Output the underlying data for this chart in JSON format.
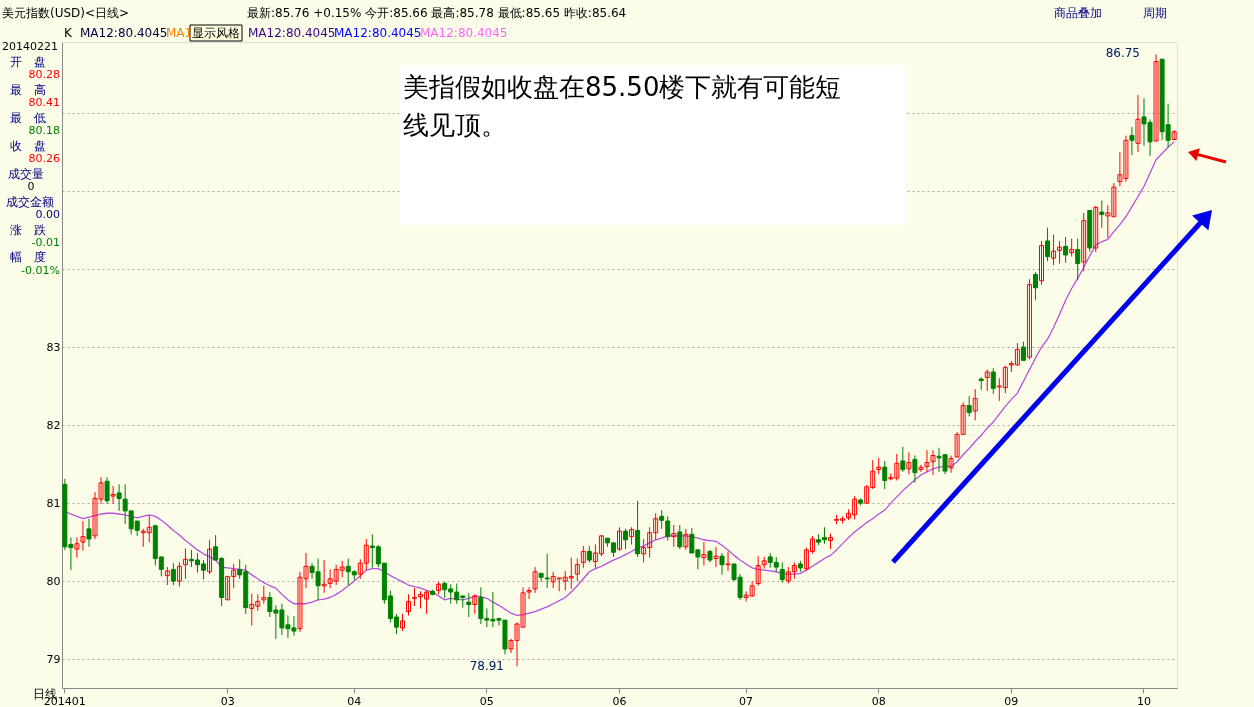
{
  "chart_data": {
    "type": "candlestick",
    "title": "美元指数(USD)<日线>",
    "categories": [
      "201401",
      null,
      null,
      null,
      null,
      null,
      null,
      null,
      null,
      null,
      null,
      null,
      null,
      null,
      null,
      null,
      null,
      null,
      null,
      null,
      null,
      null,
      null,
      null,
      null,
      null,
      null,
      "03",
      null,
      null,
      null,
      null,
      null,
      null,
      null,
      null,
      null,
      null,
      null,
      null,
      null,
      null,
      null,
      null,
      null,
      null,
      null,
      null,
      "04",
      null,
      null,
      null,
      null,
      null,
      null,
      null,
      null,
      null,
      null,
      null,
      null,
      null,
      null,
      null,
      null,
      null,
      null,
      null,
      null,
      null,
      "05",
      null,
      null,
      null,
      null,
      null,
      null,
      null,
      null,
      null,
      null,
      null,
      null,
      null,
      null,
      null,
      null,
      null,
      null,
      null,
      null,
      null,
      "06",
      null,
      null,
      null,
      null,
      null,
      null,
      null,
      null,
      null,
      null,
      null,
      null,
      null,
      null,
      null,
      null,
      null,
      null,
      null,
      null,
      "07",
      null,
      null,
      null,
      null,
      null,
      null,
      null,
      null,
      null,
      null,
      null,
      null,
      null,
      null,
      null,
      null,
      null,
      null,
      null,
      null,
      null,
      "08",
      null,
      null,
      null,
      null,
      null,
      null,
      null,
      null,
      null,
      null,
      null,
      null,
      null,
      null,
      null,
      null,
      null,
      null,
      null,
      null,
      null,
      "09",
      null,
      null,
      null,
      null,
      null,
      null,
      null,
      null,
      null,
      null,
      null,
      null,
      null,
      null,
      null,
      null,
      null,
      null,
      null,
      null,
      null,
      "10",
      null,
      null,
      null,
      null,
      null
    ],
    "ohlc": [
      [
        81.24,
        81.31,
        80.4,
        80.44
      ],
      [
        80.47,
        80.56,
        80.14,
        80.43
      ],
      [
        80.41,
        80.56,
        80.3,
        80.48
      ],
      [
        80.5,
        80.77,
        80.39,
        80.57
      ],
      [
        80.67,
        80.8,
        80.44,
        80.54
      ],
      [
        80.58,
        81.14,
        80.54,
        81.06
      ],
      [
        81.05,
        81.33,
        80.99,
        81.26
      ],
      [
        81.28,
        81.33,
        80.99,
        81.03
      ],
      [
        81.09,
        81.22,
        80.99,
        81.11
      ],
      [
        81.13,
        81.24,
        80.9,
        81.06
      ],
      [
        81.05,
        81.24,
        80.73,
        80.9
      ],
      [
        80.9,
        80.9,
        80.6,
        80.67
      ],
      [
        80.77,
        80.77,
        80.58,
        80.65
      ],
      [
        80.62,
        80.67,
        80.44,
        80.64
      ],
      [
        80.62,
        80.84,
        80.5,
        80.69
      ],
      [
        80.71,
        80.72,
        80.2,
        80.29
      ],
      [
        80.31,
        80.31,
        80.06,
        80.15
      ],
      [
        80.07,
        80.18,
        79.95,
        80.13
      ],
      [
        80.15,
        80.23,
        79.95,
        80.0
      ],
      [
        80.0,
        80.24,
        79.93,
        80.19
      ],
      [
        80.21,
        80.42,
        80.03,
        80.28
      ],
      [
        80.28,
        80.4,
        80.18,
        80.26
      ],
      [
        80.27,
        80.36,
        80.11,
        80.21
      ],
      [
        80.22,
        80.27,
        80.02,
        80.14
      ],
      [
        80.12,
        80.53,
        80.09,
        80.41
      ],
      [
        80.44,
        80.59,
        80.27,
        80.27
      ],
      [
        80.29,
        80.31,
        79.68,
        79.79
      ],
      [
        79.76,
        80.06,
        79.76,
        80.06
      ],
      [
        80.06,
        80.22,
        79.91,
        80.14
      ],
      [
        80.15,
        80.28,
        80.03,
        80.08
      ],
      [
        80.12,
        80.21,
        79.58,
        79.66
      ],
      [
        79.65,
        79.84,
        79.43,
        79.7
      ],
      [
        79.68,
        79.83,
        79.62,
        79.74
      ],
      [
        79.76,
        79.94,
        79.71,
        79.79
      ],
      [
        79.79,
        79.86,
        79.54,
        79.61
      ],
      [
        79.63,
        79.69,
        79.26,
        79.59
      ],
      [
        79.63,
        79.71,
        79.31,
        79.4
      ],
      [
        79.44,
        79.56,
        79.27,
        79.39
      ],
      [
        79.4,
        79.55,
        79.3,
        79.36
      ],
      [
        79.39,
        80.12,
        79.35,
        80.05
      ],
      [
        80.03,
        80.36,
        79.91,
        80.19
      ],
      [
        80.19,
        80.23,
        80.03,
        80.11
      ],
      [
        80.12,
        80.29,
        79.76,
        79.94
      ],
      [
        79.94,
        80.27,
        79.85,
        79.96
      ],
      [
        79.97,
        80.15,
        79.91,
        80.03
      ],
      [
        80.0,
        80.21,
        79.95,
        80.15
      ],
      [
        80.14,
        80.26,
        80.05,
        80.18
      ],
      [
        80.19,
        80.29,
        79.95,
        80.12
      ],
      [
        80.12,
        80.14,
        80.01,
        80.08
      ],
      [
        80.09,
        80.28,
        80.03,
        80.23
      ],
      [
        80.23,
        80.54,
        80.14,
        80.46
      ],
      [
        80.45,
        80.6,
        80.17,
        80.43
      ],
      [
        80.44,
        80.46,
        80.18,
        80.22
      ],
      [
        80.23,
        80.23,
        79.71,
        79.76
      ],
      [
        79.81,
        79.88,
        79.47,
        79.52
      ],
      [
        79.54,
        79.58,
        79.32,
        79.41
      ],
      [
        79.4,
        79.58,
        79.36,
        79.49
      ],
      [
        79.61,
        79.83,
        79.56,
        79.74
      ],
      [
        79.78,
        79.91,
        79.68,
        79.79
      ],
      [
        79.8,
        79.87,
        79.65,
        79.83
      ],
      [
        79.77,
        79.88,
        79.58,
        79.86
      ],
      [
        79.87,
        79.89,
        79.82,
        79.83
      ],
      [
        79.88,
        79.99,
        79.83,
        79.96
      ],
      [
        79.97,
        79.99,
        79.78,
        79.89
      ],
      [
        79.9,
        79.96,
        79.71,
        79.86
      ],
      [
        79.86,
        79.97,
        79.71,
        79.76
      ],
      [
        79.81,
        79.81,
        79.66,
        79.79
      ],
      [
        79.73,
        79.85,
        79.54,
        79.7
      ],
      [
        79.7,
        79.83,
        79.58,
        79.81
      ],
      [
        79.79,
        79.92,
        79.45,
        79.52
      ],
      [
        79.52,
        79.65,
        79.41,
        79.5
      ],
      [
        79.51,
        79.86,
        79.41,
        79.49
      ],
      [
        79.52,
        79.53,
        79.43,
        79.5
      ],
      [
        79.5,
        79.5,
        79.06,
        79.13
      ],
      [
        79.13,
        79.26,
        79.08,
        79.24
      ],
      [
        79.24,
        79.47,
        78.91,
        79.45
      ],
      [
        79.41,
        79.92,
        79.41,
        79.85
      ],
      [
        79.86,
        79.92,
        79.77,
        79.88
      ],
      [
        79.9,
        80.18,
        79.85,
        80.12
      ],
      [
        80.1,
        80.1,
        79.99,
        80.05
      ],
      [
        80.04,
        80.35,
        79.91,
        80.03
      ],
      [
        79.99,
        80.12,
        79.91,
        80.06
      ],
      [
        80.03,
        80.04,
        79.87,
        80.04
      ],
      [
        80.0,
        80.13,
        79.88,
        80.05
      ],
      [
        80.04,
        80.3,
        79.9,
        80.06
      ],
      [
        80.09,
        80.29,
        80.0,
        80.21
      ],
      [
        80.24,
        80.45,
        80.17,
        80.38
      ],
      [
        80.38,
        80.45,
        80.24,
        80.27
      ],
      [
        80.25,
        80.47,
        80.17,
        80.36
      ],
      [
        80.35,
        80.59,
        80.32,
        80.58
      ],
      [
        80.55,
        80.55,
        80.44,
        80.49
      ],
      [
        80.49,
        80.5,
        80.31,
        80.37
      ],
      [
        80.41,
        80.69,
        80.39,
        80.64
      ],
      [
        80.64,
        80.67,
        80.41,
        80.53
      ],
      [
        80.57,
        80.69,
        80.47,
        80.66
      ],
      [
        80.65,
        81.03,
        80.31,
        80.35
      ],
      [
        80.35,
        80.54,
        80.24,
        80.43
      ],
      [
        80.43,
        80.69,
        80.3,
        80.62
      ],
      [
        80.62,
        80.87,
        80.53,
        80.8
      ],
      [
        80.83,
        80.91,
        80.67,
        80.78
      ],
      [
        80.77,
        80.83,
        80.52,
        80.57
      ],
      [
        80.57,
        80.72,
        80.44,
        80.61
      ],
      [
        80.63,
        80.72,
        80.41,
        80.44
      ],
      [
        80.44,
        80.67,
        80.4,
        80.6
      ],
      [
        80.6,
        80.68,
        80.36,
        80.36
      ],
      [
        80.4,
        80.41,
        80.15,
        80.31
      ],
      [
        80.3,
        80.5,
        80.2,
        80.34
      ],
      [
        80.38,
        80.4,
        80.24,
        80.27
      ],
      [
        80.29,
        80.44,
        80.18,
        80.32
      ],
      [
        80.32,
        80.36,
        80.08,
        80.21
      ],
      [
        80.21,
        80.38,
        80.13,
        80.22
      ],
      [
        80.22,
        80.22,
        80.0,
        80.02
      ],
      [
        80.05,
        80.09,
        79.76,
        79.79
      ],
      [
        79.79,
        79.87,
        79.74,
        79.82
      ],
      [
        79.81,
        80.0,
        79.8,
        79.94
      ],
      [
        79.97,
        80.32,
        79.94,
        80.2
      ],
      [
        80.21,
        80.31,
        80.16,
        80.26
      ],
      [
        80.31,
        80.36,
        80.17,
        80.24
      ],
      [
        80.24,
        80.31,
        80.12,
        80.18
      ],
      [
        80.15,
        80.24,
        79.98,
        80.02
      ],
      [
        80.0,
        80.18,
        79.97,
        80.12
      ],
      [
        80.12,
        80.24,
        80.03,
        80.2
      ],
      [
        80.22,
        80.26,
        80.12,
        80.17
      ],
      [
        80.16,
        80.43,
        80.13,
        80.4
      ],
      [
        80.38,
        80.58,
        80.35,
        80.54
      ],
      [
        80.53,
        80.6,
        80.46,
        80.5
      ],
      [
        80.56,
        80.69,
        80.48,
        80.53
      ],
      [
        80.52,
        80.61,
        80.41,
        80.56
      ],
      [
        80.78,
        80.85,
        80.73,
        80.79
      ],
      [
        80.78,
        80.83,
        80.74,
        80.8
      ],
      [
        80.81,
        80.92,
        80.78,
        80.87
      ],
      [
        80.85,
        81.09,
        80.79,
        81.05
      ],
      [
        81.04,
        81.06,
        80.97,
        81.0
      ],
      [
        81.0,
        81.23,
        80.99,
        81.21
      ],
      [
        81.2,
        81.55,
        81.18,
        81.41
      ],
      [
        81.43,
        81.58,
        81.37,
        81.46
      ],
      [
        81.46,
        81.54,
        81.18,
        81.29
      ],
      [
        81.31,
        81.38,
        81.29,
        81.33
      ],
      [
        81.32,
        81.63,
        81.29,
        81.51
      ],
      [
        81.54,
        81.72,
        81.4,
        81.43
      ],
      [
        81.44,
        81.65,
        81.37,
        81.52
      ],
      [
        81.56,
        81.61,
        81.26,
        81.39
      ],
      [
        81.43,
        81.49,
        81.4,
        81.46
      ],
      [
        81.47,
        81.68,
        81.4,
        81.52
      ],
      [
        81.53,
        81.68,
        81.36,
        81.61
      ],
      [
        81.6,
        81.71,
        81.4,
        81.58
      ],
      [
        81.62,
        81.63,
        81.37,
        81.41
      ],
      [
        81.45,
        81.61,
        81.39,
        81.57
      ],
      [
        81.59,
        81.91,
        81.59,
        81.88
      ],
      [
        81.88,
        82.29,
        81.88,
        82.25
      ],
      [
        82.25,
        82.37,
        82.11,
        82.16
      ],
      [
        82.18,
        82.46,
        82.06,
        82.34
      ],
      [
        82.59,
        82.61,
        82.45,
        82.57
      ],
      [
        82.61,
        82.71,
        82.44,
        82.68
      ],
      [
        82.68,
        82.73,
        82.4,
        82.47
      ],
      [
        82.49,
        82.6,
        82.31,
        82.5
      ],
      [
        82.48,
        82.76,
        82.41,
        82.74
      ],
      [
        82.77,
        82.82,
        82.68,
        82.79
      ],
      [
        82.77,
        83.05,
        82.77,
        82.97
      ],
      [
        83.0,
        83.07,
        82.82,
        82.83
      ],
      [
        82.87,
        83.87,
        82.84,
        83.8
      ],
      [
        83.93,
        83.96,
        83.6,
        83.76
      ],
      [
        83.85,
        84.36,
        83.8,
        84.3
      ],
      [
        84.36,
        84.53,
        84.1,
        84.16
      ],
      [
        84.14,
        84.44,
        84.05,
        84.23
      ],
      [
        84.24,
        84.36,
        84.07,
        84.28
      ],
      [
        84.29,
        84.41,
        84.08,
        84.18
      ],
      [
        84.21,
        84.39,
        84.16,
        84.25
      ],
      [
        84.25,
        84.39,
        83.86,
        84.07
      ],
      [
        84.09,
        84.72,
        83.97,
        84.62
      ],
      [
        84.75,
        84.76,
        84.22,
        84.27
      ],
      [
        84.27,
        84.81,
        84.22,
        84.79
      ],
      [
        84.73,
        84.88,
        84.53,
        84.7
      ],
      [
        84.68,
        84.82,
        84.4,
        84.72
      ],
      [
        84.67,
        85.1,
        84.67,
        85.05
      ],
      [
        85.12,
        85.5,
        85.06,
        85.21
      ],
      [
        85.16,
        85.71,
        85.12,
        85.65
      ],
      [
        85.71,
        85.82,
        85.46,
        85.65
      ],
      [
        85.61,
        86.23,
        85.5,
        85.92
      ],
      [
        85.95,
        86.19,
        85.58,
        85.86
      ],
      [
        85.88,
        85.92,
        85.45,
        85.63
      ],
      [
        85.64,
        86.75,
        85.64,
        86.66
      ],
      [
        86.69,
        86.69,
        85.65,
        85.76
      ],
      [
        85.85,
        86.12,
        85.56,
        85.65
      ],
      [
        85.66,
        85.78,
        85.65,
        85.76
      ]
    ],
    "series": [
      {
        "type": "line",
        "color": "#b84fe0",
        "values": [
          80.89,
          80.86,
          80.83,
          80.8,
          80.82,
          80.84,
          80.86,
          80.87,
          80.87,
          80.86,
          80.85,
          80.83,
          80.81,
          80.83,
          80.85,
          80.83,
          80.78,
          80.72,
          80.65,
          80.59,
          80.52,
          80.46,
          80.4,
          80.35,
          80.31,
          80.27,
          80.18,
          80.17,
          80.16,
          80.15,
          80.14,
          80.08,
          80.03,
          79.98,
          79.94,
          79.91,
          79.83,
          79.76,
          79.71,
          79.71,
          79.71,
          79.73,
          79.76,
          79.77,
          79.79,
          79.83,
          79.88,
          79.94,
          80.0,
          80.07,
          80.14,
          80.16,
          80.16,
          80.12,
          80.07,
          80.03,
          79.99,
          79.95,
          79.93,
          79.91,
          79.88,
          79.86,
          79.81,
          79.76,
          79.78,
          79.77,
          79.76,
          79.78,
          79.81,
          79.8,
          79.78,
          79.73,
          79.69,
          79.64,
          79.59,
          79.56,
          79.57,
          79.59,
          79.61,
          79.64,
          79.67,
          79.71,
          79.75,
          79.79,
          79.86,
          79.94,
          80.03,
          80.12,
          80.16,
          80.19,
          80.23,
          80.27,
          80.3,
          80.34,
          80.38,
          80.43,
          80.45,
          80.49,
          80.53,
          80.55,
          80.58,
          80.58,
          80.58,
          80.58,
          80.57,
          80.55,
          80.53,
          80.52,
          80.51,
          80.46,
          80.4,
          80.33,
          80.27,
          80.22,
          80.17,
          80.15,
          80.14,
          80.13,
          80.12,
          80.1,
          80.09,
          80.09,
          80.1,
          80.14,
          80.19,
          80.24,
          80.29,
          80.33,
          80.4,
          80.48,
          80.56,
          80.63,
          80.69,
          80.75,
          80.8,
          80.86,
          80.91,
          81.0,
          81.08,
          81.16,
          81.23,
          81.3,
          81.36,
          81.4,
          81.44,
          81.46,
          81.47,
          81.47,
          81.53,
          81.62,
          81.7,
          81.79,
          81.87,
          81.96,
          82.04,
          82.14,
          82.24,
          82.33,
          82.41,
          82.56,
          82.71,
          82.86,
          83.0,
          83.1,
          83.25,
          83.42,
          83.6,
          83.75,
          83.88,
          84.02,
          84.17,
          84.31,
          84.35,
          84.38,
          84.48,
          84.57,
          84.67,
          84.8,
          84.93,
          85.06,
          85.23,
          85.4,
          85.48,
          85.56,
          85.63
        ]
      }
    ],
    "ylim": [
      78.63,
      86.91
    ],
    "yticks": [
      79,
      80,
      81,
      82,
      83,
      {
        "value": 84,
        "label": null
      },
      {
        "value": 85,
        "label": null
      },
      {
        "value": 86,
        "label": null
      }
    ],
    "grid": "y",
    "annotations": [
      "最新:85.76 +0.15%  今开:85.66  最高:85.78  最低:85.65  昨收:85.64",
      "商品叠加",
      "周期",
      "K",
      "MA12:80.4045",
      "MA1",
      "显示风格",
      "MA12:80.4045",
      "MA12:80.4045",
      "MA12:80.4045",
      "20140221",
      "开　盘",
      "80.28",
      "最　高",
      "80.41",
      "最　低",
      "80.18",
      "收　盘",
      "80.26",
      "成交量",
      "0",
      "成交金额",
      "0.00",
      "涨　跌",
      "-0.01",
      "幅　度",
      "-0.01%",
      "日线",
      "86.75",
      "78.91",
      "美指假如收盘在85.50楼下就有可能短线见顶。"
    ]
  }
}
